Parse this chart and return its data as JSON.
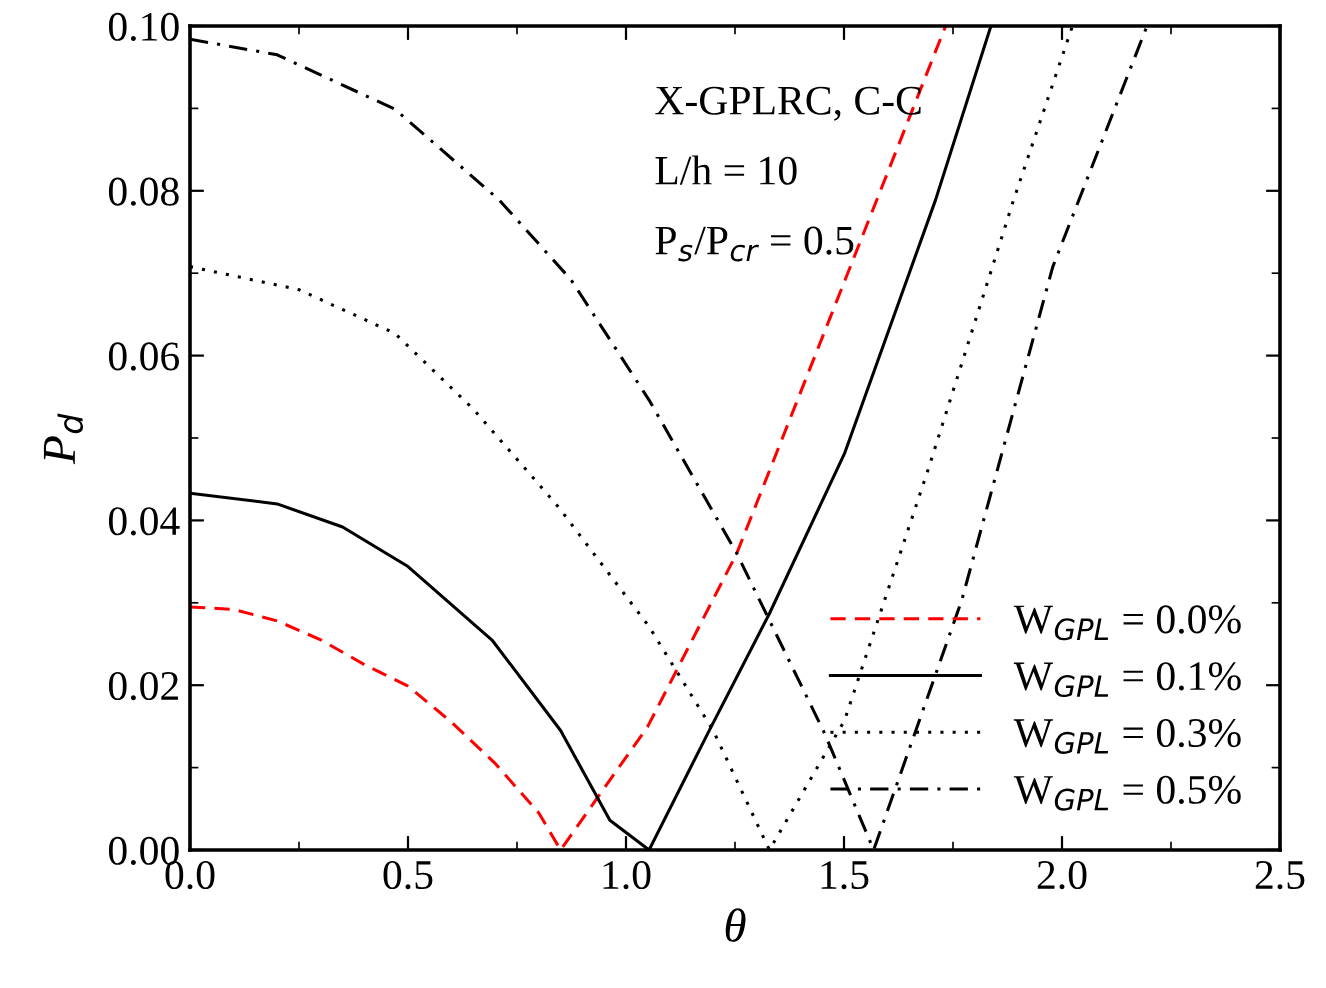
{
  "chart_data": {
    "type": "line",
    "xlabel": "θ",
    "ylabel": "P$_{d}$",
    "annotations": [
      "X-GPLRC, C-C",
      "L/h = 10",
      "P$_{s}$/P$_{cr}$ = 0.5"
    ],
    "xlim": [
      0,
      2.5
    ],
    "ylim": [
      0,
      0.1
    ],
    "xticks": [
      {
        "value": 0,
        "label": "0.0"
      },
      0.5,
      {
        "value": 1,
        "label": "1.0"
      },
      1.5,
      {
        "value": 2,
        "label": "2.0"
      },
      2.5
    ],
    "yticks": [
      {
        "value": 0,
        "label": "0.00"
      },
      0.02,
      0.04,
      0.06,
      0.08,
      {
        "value": 0.1,
        "label": "0.10"
      }
    ],
    "grid": false,
    "legend": "bottom right",
    "marker": "none",
    "series": [
      {
        "name": "W$_{GPL}$ = 0.0%",
        "color": "#ff0000",
        "line_style": "dashed",
        "x": [
          0,
          0.1,
          0.2,
          0.3,
          0.4,
          0.5,
          0.6,
          0.7,
          0.8,
          0.85,
          0.95,
          1.05,
          1.254,
          1.4,
          1.576,
          1.733
        ],
        "values": [
          0.0295,
          0.0292,
          0.0278,
          0.0255,
          0.0225,
          0.0199,
          0.0155,
          0.0105,
          0.0045,
          0,
          0.0075,
          0.015,
          0.036,
          0.0555,
          0.079,
          0.1
        ]
      },
      {
        "name": "W$_{GPL}$ = 0.1%",
        "color": "#000000",
        "line_style": "solid",
        "x": [
          0,
          0.2,
          0.35,
          0.5,
          0.694,
          0.85,
          0.963,
          1.053,
          1.187,
          1.329,
          1.501,
          1.71,
          1.837
        ],
        "values": [
          0.0433,
          0.042,
          0.0392,
          0.0344,
          0.0254,
          0.0145,
          0.0036,
          0,
          0.0141,
          0.0287,
          0.0481,
          0.0789,
          0.1
        ]
      },
      {
        "name": "W$_{GPL}$ = 0.3%",
        "color": "#000000",
        "line_style": "dotted",
        "x": [
          0,
          0.25,
          0.47,
          0.65,
          0.844,
          1.053,
          1.2,
          1.329,
          1.501,
          1.695,
          1.889,
          2.024
        ],
        "values": [
          0.0708,
          0.068,
          0.0627,
          0.0535,
          0.0417,
          0.0271,
          0.0145,
          0,
          0.0157,
          0.0465,
          0.0789,
          0.1
        ]
      },
      {
        "name": "W$_{GPL}$ = 0.5%",
        "color": "#000000",
        "line_style": "dashdot",
        "x": [
          0,
          0.2,
          0.47,
          0.709,
          0.874,
          1.053,
          1.254,
          1.456,
          1.568,
          1.77,
          1.979,
          2.195
        ],
        "values": [
          0.0984,
          0.0965,
          0.0899,
          0.0789,
          0.0692,
          0.0546,
          0.036,
          0.0141,
          0,
          0.0303,
          0.0708,
          0.1
        ]
      }
    ]
  }
}
